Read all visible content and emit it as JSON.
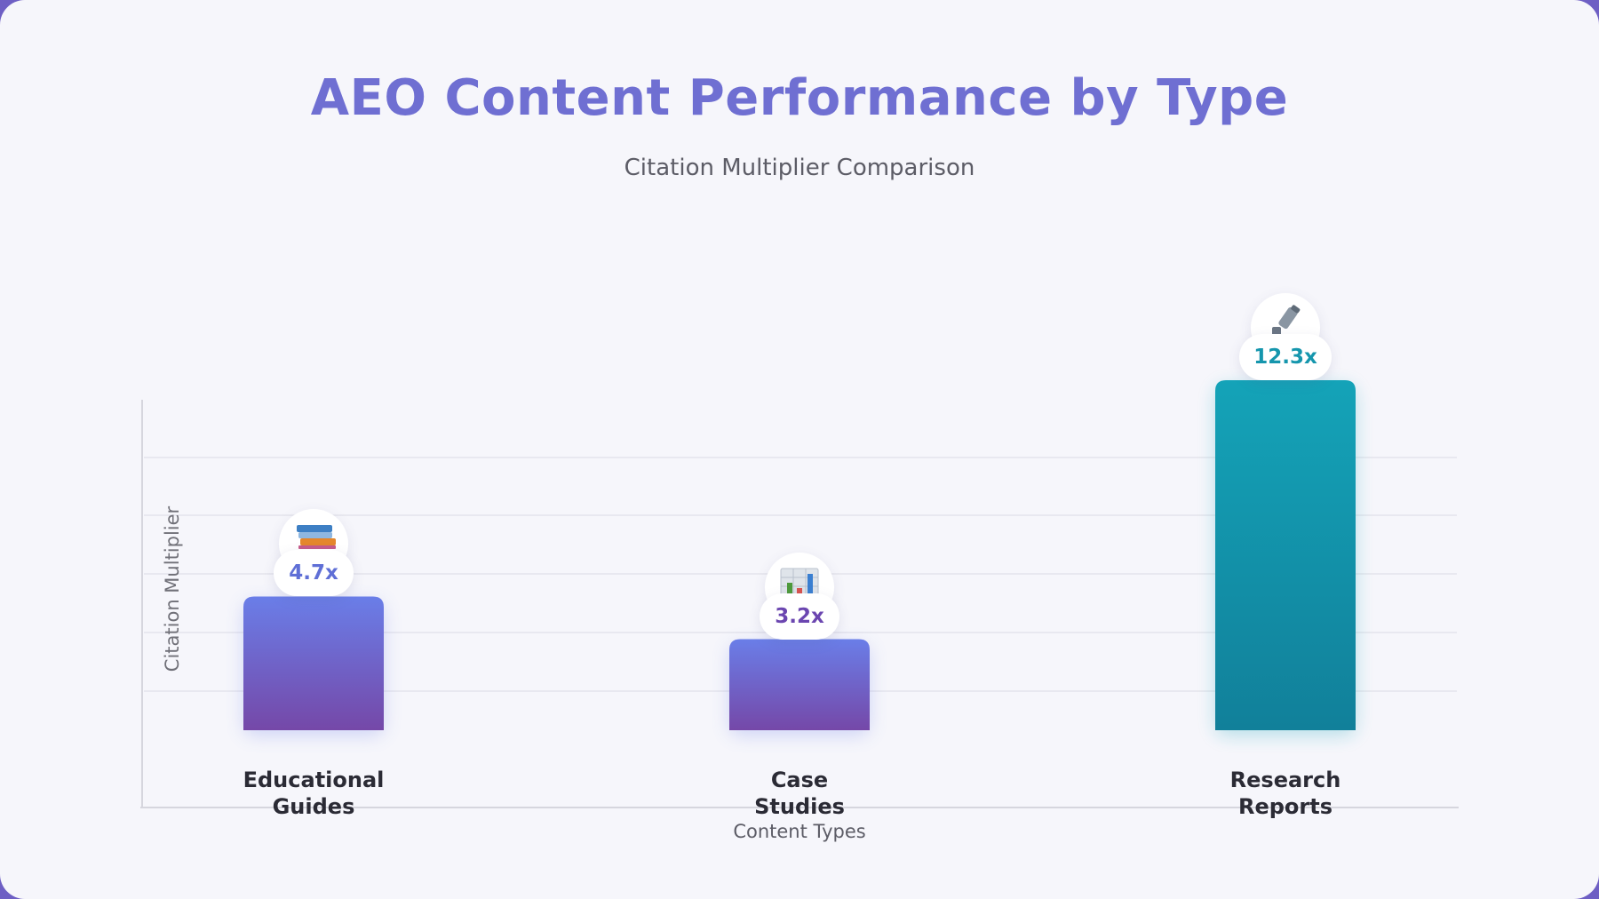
{
  "chart_data": {
    "type": "bar",
    "title": "AEO Content Performance by Type",
    "subtitle": "Citation Multiplier Comparison",
    "xlabel": "Content Types",
    "ylabel": "Citation Multiplier",
    "categories": [
      "Educational\nGuides",
      "Case\nStudies",
      "Research\nReports"
    ],
    "values": [
      4.7,
      3.2,
      12.3
    ],
    "value_labels": [
      "4.7x",
      "3.2x",
      "12.3x"
    ],
    "icons": [
      "books-icon",
      "bar-chart-icon",
      "microscope-icon"
    ],
    "colors": [
      {
        "top": "#6a7ee8",
        "bottom": "#7548a8",
        "label": "#5f6fd6"
      },
      {
        "top": "#6a7ee8",
        "bottom": "#7548a8",
        "label": "#6b46b0"
      },
      {
        "top": "#14a3b8",
        "bottom": "#11809a",
        "label": "#1596ad"
      }
    ],
    "grid": true,
    "legend": "none"
  }
}
